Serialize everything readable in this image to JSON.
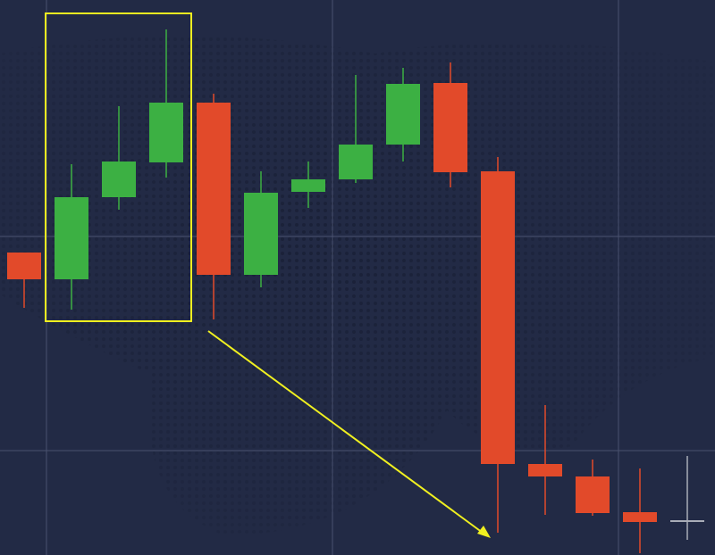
{
  "chart_data": {
    "type": "candlestick",
    "ylim": [
      0,
      622
    ],
    "up_color": "#3cb043",
    "down_color": "#e24a2a",
    "flat_color": "#a9adb8",
    "open": [
      339,
      309,
      401,
      440,
      507,
      314,
      407,
      421,
      460,
      529,
      430,
      102,
      88,
      48,
      38
    ],
    "high": [
      339,
      438,
      503,
      589,
      517,
      430,
      441,
      538,
      546,
      552,
      446,
      168,
      107,
      97,
      111
    ],
    "low": [
      277,
      275,
      387,
      423,
      264,
      300,
      389,
      417,
      441,
      412,
      25,
      45,
      44,
      2,
      17
    ],
    "close": [
      309,
      401,
      441,
      507,
      314,
      406,
      421,
      460,
      528,
      429,
      102,
      88,
      47,
      37,
      38
    ]
  }
}
